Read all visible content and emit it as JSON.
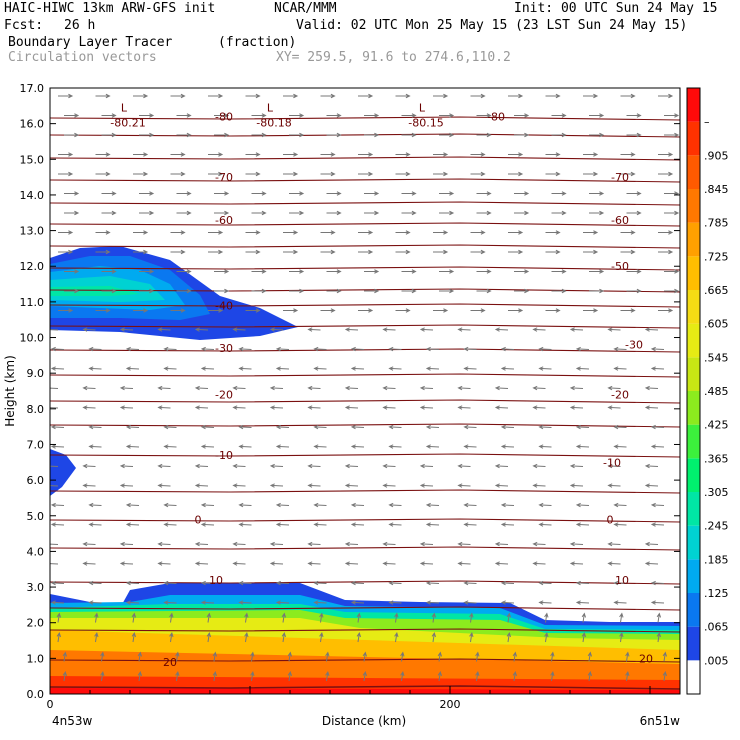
{
  "header": {
    "line1_left": "HAIC-HIWC 13km ARW-GFS init",
    "line1_center": "NCAR/MMM",
    "line1_right": "Init: 00 UTC Sun 24 May 15",
    "fcst_label": "Fcst:",
    "fcst_value": "26 h",
    "valid": "Valid: 02 UTC Mon 25 May 15 (23 LST Sun 24 May 15)",
    "field_name": "Boundary Layer Tracer",
    "field_units": "(fraction)",
    "vectors_label": "Circulation vectors",
    "xy_label": "XY= 259.5, 91.6 to 274.6,110.2"
  },
  "chart_data": {
    "type": "heatmap",
    "title": "Boundary Layer Tracer",
    "xlabel": "Distance (km)",
    "ylabel": "Height (km)",
    "xlim": [
      0,
      315
    ],
    "ylim": [
      0,
      17
    ],
    "x_ticks": [
      {
        "value": 0,
        "label": "0"
      },
      {
        "value": 200,
        "label": "200"
      }
    ],
    "x_end_labels": {
      "left": "4n53w",
      "right": "6n51w"
    },
    "y_ticks": [
      "0.0",
      "1.0",
      "2.0",
      "3.0",
      "4.0",
      "5.0",
      "6.0",
      "7.0",
      "8.0",
      "9.0",
      "10.0",
      "11.0",
      "12.0",
      "13.0",
      "14.0",
      "15.0",
      "16.0",
      "17.0"
    ],
    "colorbar": {
      "labels": [
        ".005",
        ".065",
        ".125",
        ".185",
        ".245",
        ".305",
        ".365",
        ".425",
        ".485",
        ".545",
        ".605",
        ".665",
        ".725",
        ".785",
        ".845",
        ".905",
        "–"
      ],
      "colors": [
        "#ffffff",
        "#1e46e6",
        "#0a78f0",
        "#00aaf0",
        "#00d2d2",
        "#00e6a5",
        "#00f06e",
        "#3cf03c",
        "#8ceb1e",
        "#c8e614",
        "#e6eb14",
        "#f5dc14",
        "#ffbe00",
        "#ffa000",
        "#ff7800",
        "#ff5a00",
        "#ff3200",
        "#ff0a0a"
      ]
    },
    "isotherm_labels": [
      {
        "value": "20",
        "x": 60,
        "y": 0.9
      },
      {
        "value": "20",
        "x": 298,
        "y": 1.0
      },
      {
        "value": "10",
        "x": 83,
        "y": 3.2
      },
      {
        "value": "10",
        "x": 286,
        "y": 3.2
      },
      {
        "value": "0",
        "x": 74,
        "y": 4.9
      },
      {
        "value": "0",
        "x": 280,
        "y": 4.9
      },
      {
        "value": "-10",
        "x": 87,
        "y": 6.7
      },
      {
        "value": "-10",
        "x": 281,
        "y": 6.5
      },
      {
        "value": "-20",
        "x": 87,
        "y": 8.4
      },
      {
        "value": "-20",
        "x": 285,
        "y": 8.4
      },
      {
        "value": "-30",
        "x": 87,
        "y": 9.7
      },
      {
        "value": "-30",
        "x": 292,
        "y": 9.8
      },
      {
        "value": "-40",
        "x": 87,
        "y": 10.9
      },
      {
        "value": "-50",
        "x": 285,
        "y": 12.0
      },
      {
        "value": "-60",
        "x": 87,
        "y": 13.3
      },
      {
        "value": "-60",
        "x": 285,
        "y": 13.3
      },
      {
        "value": "-70",
        "x": 87,
        "y": 14.5
      },
      {
        "value": "-70",
        "x": 285,
        "y": 14.5
      },
      {
        "value": "-80",
        "x": 87,
        "y": 16.2
      },
      {
        "value": "-80",
        "x": 223,
        "y": 16.2
      }
    ],
    "minima": [
      {
        "label": "L",
        "value": "-80.21",
        "x": 39,
        "y": 16.2
      },
      {
        "label": "L",
        "value": "-80.18",
        "x": 112,
        "y": 16.2
      },
      {
        "label": "L",
        "value": "-80.15",
        "x": 188,
        "y": 16.2
      }
    ]
  }
}
